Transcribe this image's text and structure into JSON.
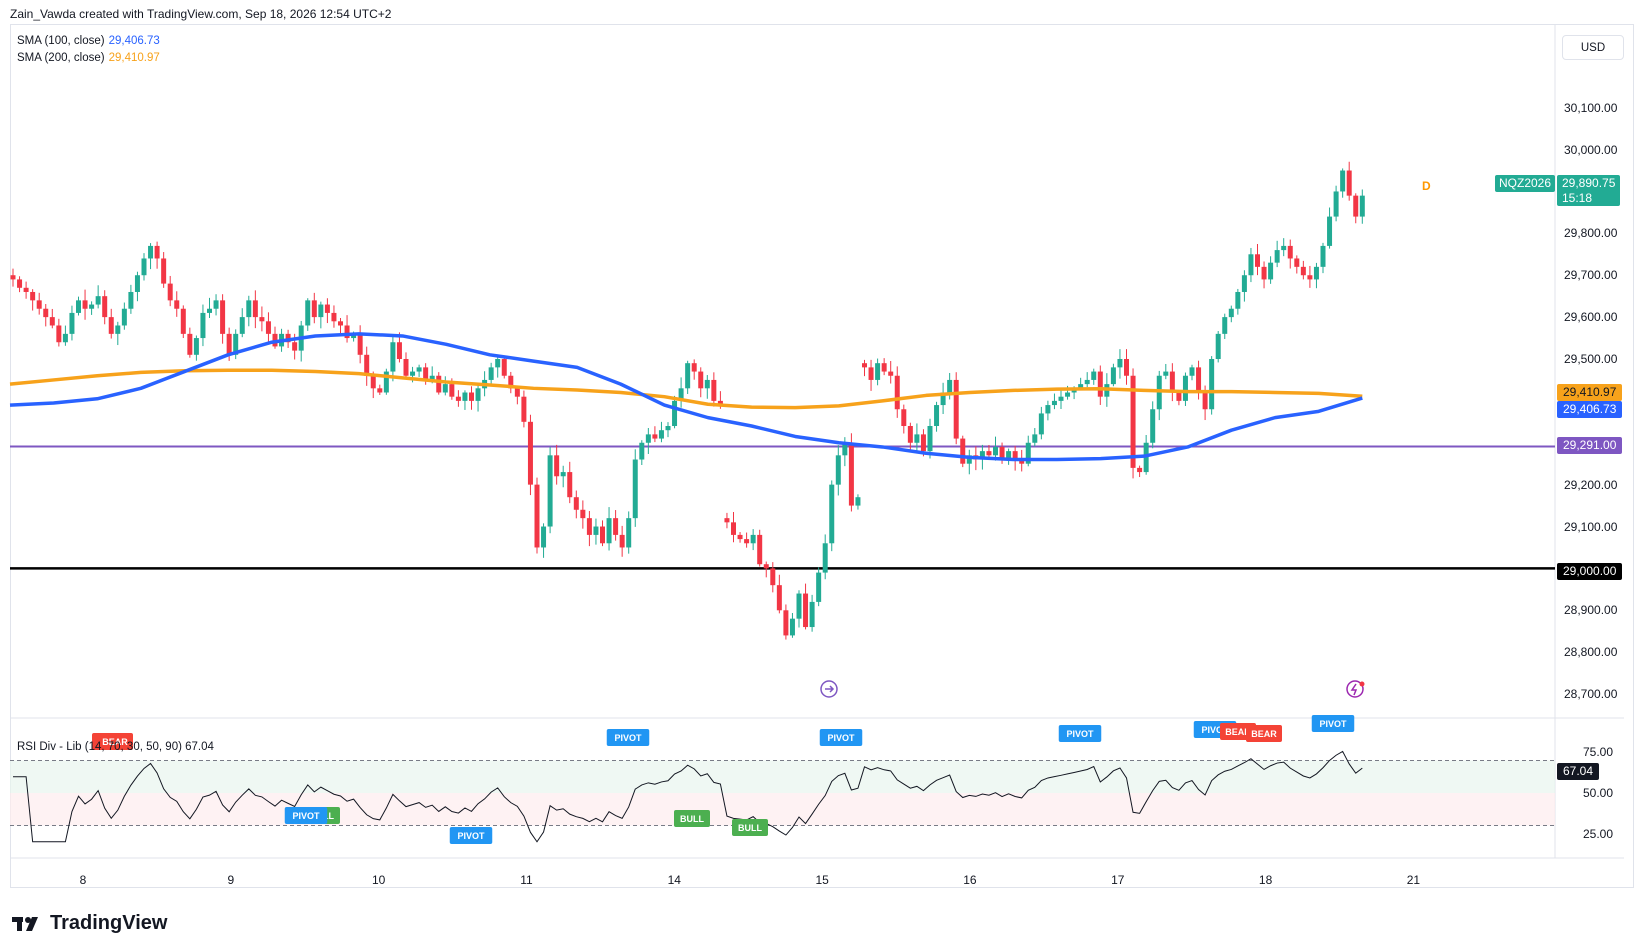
{
  "header": {
    "byline": "Zain_Vawda created with TradingView.com, Sep 18, 2026 12:54 UTC+2"
  },
  "legend": {
    "sma100": {
      "label": "SMA (100, close)",
      "value": "29,406.73",
      "color": "#2962ff"
    },
    "sma200": {
      "label": "SMA (200, close)",
      "value": "29,410.97",
      "color": "#f7a21b"
    },
    "rsi": {
      "label": "RSI Div - Lib (14, 70, 30, 50, 90)",
      "value": "67.04"
    }
  },
  "currency_button": "USD",
  "symbol": {
    "ticker": "NQZ2026",
    "price": "29,890.75",
    "countdown": "15:18",
    "session_badge": "D"
  },
  "price_tags": {
    "sma200": "29,410.97",
    "sma100": "29,406.73",
    "line_purple": "29,291.00",
    "line_black": "29,000.00",
    "rsi": "67.04"
  },
  "price_axis_labels": [
    "30,100.00",
    "30,000.00",
    "29,900.00",
    "29,800.00",
    "29,700.00",
    "29,600.00",
    "29,500.00",
    "29,400.00",
    "29,300.00",
    "29,200.00",
    "29,100.00",
    "29,000.00",
    "28,900.00",
    "28,800.00",
    "28,700.00"
  ],
  "rsi_axis_labels": [
    "75.00",
    "50.00",
    "25.00"
  ],
  "time_axis_labels": [
    "8",
    "9",
    "10",
    "11",
    "14",
    "15",
    "16",
    "17",
    "18",
    "21"
  ],
  "logo_text": "TradingView",
  "colors": {
    "up": "#22ab94",
    "down": "#f23645",
    "sma100": "#2962ff",
    "sma200": "#f7a21b",
    "hline_purple": "#7e57c2",
    "hline_black": "#000000",
    "bull": "#4caf50",
    "bear": "#f44336",
    "pivot": "#2196f3"
  },
  "chart_data": {
    "type": "candlestick",
    "symbol": "NQZ2026",
    "timeframe": "1h",
    "y_range": [
      28650,
      30190
    ],
    "x_days": [
      "8",
      "9",
      "10",
      "11",
      "14",
      "15",
      "16",
      "17",
      "18",
      "21"
    ],
    "horizontal_lines": [
      29291.0,
      29000.0
    ],
    "segments": [
      {
        "start_x": 0,
        "closes": [
          29690,
          29670,
          29660,
          29640,
          29620,
          29600,
          29580,
          29540,
          29560,
          29610,
          29640,
          29620,
          29630,
          29650,
          29600,
          29560,
          29580,
          29620,
          29660,
          29700,
          29740,
          29770,
          29740,
          29680,
          29640,
          29620,
          29560,
          29510,
          29550,
          29610,
          29620,
          29640,
          29560,
          29510,
          29560,
          29600,
          29640,
          29600,
          29590,
          29560,
          29530,
          29560,
          29540,
          29520,
          29580,
          29640,
          29600,
          29630,
          29610,
          29590,
          29580,
          29550,
          29560,
          29510,
          29460,
          29430,
          29420,
          29470,
          29540,
          29500,
          29460,
          29470,
          29480,
          29450,
          29460,
          29420,
          29440,
          29410,
          29400,
          29420,
          29400,
          29430,
          29450,
          29480,
          29500,
          29460,
          29430,
          29410,
          29350,
          29200,
          29050,
          29100,
          29270,
          29220,
          29230,
          29170,
          29140,
          29120,
          29080,
          29100,
          29060,
          29120,
          29080,
          29050,
          29120,
          29260,
          29300,
          29320,
          29310,
          29330,
          29340,
          29400,
          29430,
          29490,
          29470,
          29430,
          29450,
          29400,
          29390
        ]
      },
      {
        "start_x": 109,
        "closes": [
          29110,
          29080,
          29070,
          29060,
          29080,
          29010,
          29000,
          28960,
          28900,
          28840,
          28880,
          28940,
          28860,
          28920,
          28990,
          29060,
          29200,
          29270,
          29300,
          29150,
          29170
        ]
      },
      {
        "start_x": 130,
        "closes": [
          29480,
          29450,
          29490,
          29470,
          29460,
          29380,
          29340,
          29300,
          29320,
          29280,
          29340,
          29390,
          29420,
          29450,
          29310,
          29250,
          29270,
          29260,
          29280,
          29270,
          29290,
          29260,
          29280,
          29260,
          29250,
          29300,
          29320,
          29370,
          29390,
          29400,
          29410,
          29420,
          29430,
          29440,
          29450,
          29470,
          29410,
          29440,
          29480,
          29500,
          29460,
          29240,
          29230,
          29300,
          29380,
          29460,
          29470,
          29420,
          29400,
          29460,
          29480,
          29420,
          29380,
          29500,
          29560,
          29600,
          29620,
          29660,
          29700,
          29750,
          29720,
          29690,
          29730,
          29760,
          29770,
          29740,
          29720,
          29700,
          29690,
          29720,
          29770,
          29840,
          29900,
          29950,
          29890,
          29840,
          29890
        ]
      }
    ],
    "sma100": [
      29390,
      29395,
      29405,
      29430,
      29470,
      29510,
      29540,
      29555,
      29560,
      29555,
      29535,
      29510,
      29495,
      29480,
      29440,
      29390,
      29360,
      29340,
      29315,
      29300,
      29290,
      29275,
      29265,
      29260,
      29260,
      29262,
      29268,
      29290,
      29330,
      29360,
      29375,
      29406.73
    ],
    "sma200": [
      29440,
      29450,
      29460,
      29468,
      29472,
      29473,
      29473,
      29470,
      29465,
      29455,
      29445,
      29438,
      29430,
      29426,
      29420,
      29410,
      29392,
      29385,
      29384,
      29388,
      29400,
      29413,
      29420,
      29425,
      29428,
      29429,
      29425,
      29422,
      29422,
      29420,
      29418,
      29410.97
    ],
    "rsi": {
      "range": [
        10,
        90
      ],
      "overbought": 70,
      "oversold": 30,
      "mid": 50,
      "last": 67.04,
      "signals": [
        "BEAR",
        "BEAR",
        "PIVOT",
        "BULL",
        "PIVOT",
        "PIVOT",
        "BULL",
        "BULL",
        "PIVOT",
        "PIVOT",
        "PIVOT",
        "BEAR",
        "BEAR",
        "PIVOT"
      ]
    }
  }
}
